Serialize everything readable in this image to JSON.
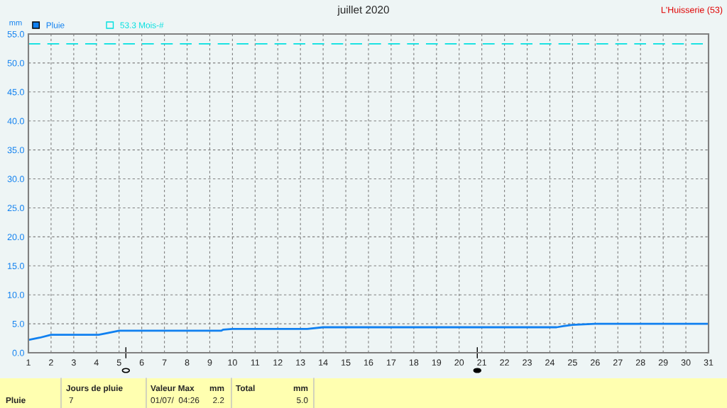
{
  "chart_data": {
    "type": "line",
    "title": "juillet 2020",
    "ylabel": "mm",
    "x": [
      1,
      1.5,
      2,
      4.1,
      4.5,
      5,
      9.5,
      9.6,
      10,
      13.3,
      14,
      24.3,
      24.6,
      25,
      26,
      31
    ],
    "series": [
      {
        "name": "Pluie",
        "color": "#1080f0",
        "values": [
          2.2,
          2.6,
          3.1,
          3.1,
          3.4,
          3.8,
          3.8,
          4.0,
          4.1,
          4.1,
          4.4,
          4.4,
          4.6,
          4.8,
          5.0,
          5.0
        ]
      }
    ],
    "xlim": [
      1,
      31
    ],
    "xticks": [
      1,
      2,
      3,
      4,
      5,
      6,
      7,
      8,
      9,
      10,
      11,
      12,
      13,
      14,
      15,
      16,
      17,
      18,
      19,
      20,
      21,
      22,
      23,
      24,
      25,
      26,
      27,
      28,
      29,
      30,
      31
    ],
    "ylim": [
      0,
      55
    ],
    "yticks": [
      {
        "value": 0,
        "label": "0.0"
      },
      {
        "value": 5,
        "label": "5.0"
      },
      {
        "value": 10,
        "label": "10.0"
      },
      {
        "value": 15,
        "label": "15.0"
      },
      {
        "value": 20,
        "label": "20.0"
      },
      {
        "value": 25,
        "label": "25.0"
      },
      {
        "value": 30,
        "label": "30.0"
      },
      {
        "value": 35,
        "label": "35.0"
      },
      {
        "value": 40,
        "label": "40.0"
      },
      {
        "value": 45,
        "label": "45.0"
      },
      {
        "value": 50,
        "label": "50.0"
      },
      {
        "value": 55,
        "label": "55.0"
      }
    ],
    "ref_lines": [
      {
        "axis": "y",
        "value": 53.3,
        "label": "53.3 Mois-#",
        "color": "#00e0e0",
        "line_style": "dashed"
      }
    ],
    "grid": true,
    "legend": "top left",
    "marker": "none",
    "line_style": "solid",
    "annotations": [
      "L'Huisserie (53)",
      "Pluie",
      "Jours de pluie",
      "7",
      "Valeur Max",
      "mm",
      "01/07/  04:26",
      "2.2",
      "Total",
      "mm",
      "5.0"
    ]
  }
}
